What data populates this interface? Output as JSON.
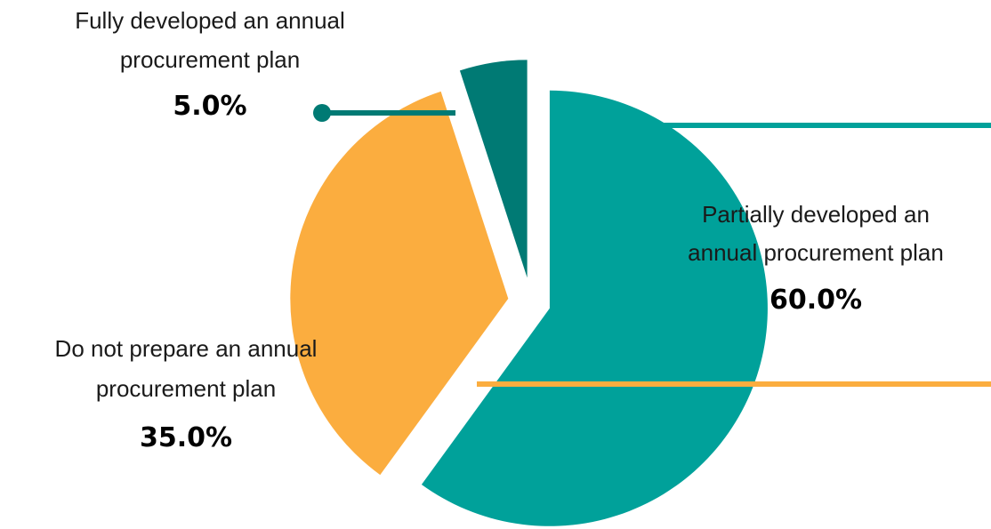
{
  "chart_data": {
    "type": "pie",
    "series": [
      {
        "key": "partial",
        "label_lines": [
          "Partially developed an",
          "annual procurement plan"
        ],
        "value": 60.0,
        "value_label": "60.0%",
        "color": "#00A19A"
      },
      {
        "key": "none",
        "label_lines": [
          "Do not prepare an annual",
          "procurement plan"
        ],
        "value": 35.0,
        "value_label": "35.0%",
        "color": "#FBAD3F"
      },
      {
        "key": "full",
        "label_lines": [
          "Fully developed an annual",
          "procurement plan"
        ],
        "value": 5.0,
        "value_label": "5.0%",
        "color": "#007A74"
      }
    ],
    "exploded": true,
    "start_angle_deg": 0,
    "direction": "clockwise"
  }
}
